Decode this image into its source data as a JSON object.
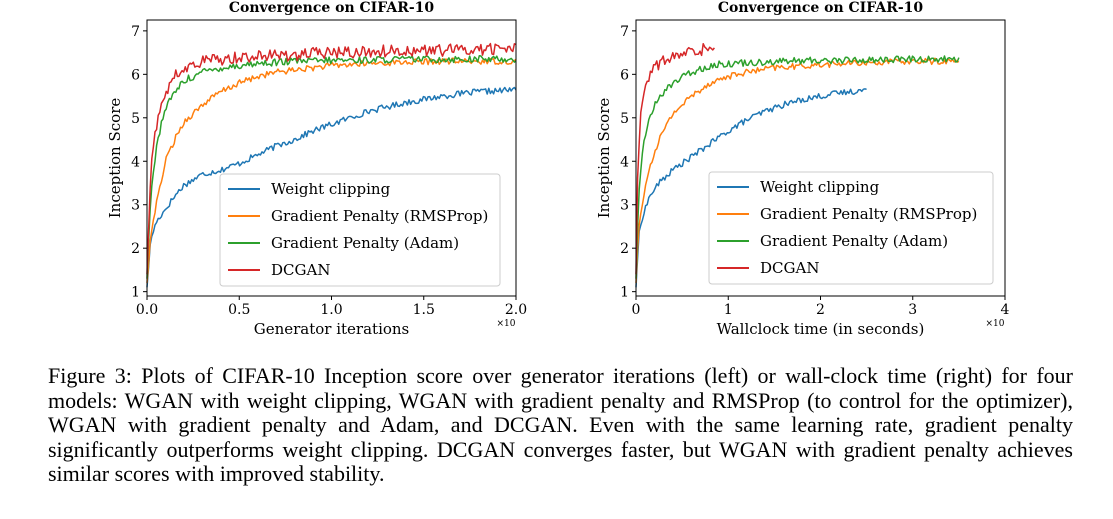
{
  "chart_data": [
    {
      "type": "line",
      "title": "Convergence on CIFAR-10",
      "xlabel": "Generator iterations",
      "ylabel": "Inception Score",
      "x_multiplier_label": "×10",
      "xlim": [
        0,
        2.0
      ],
      "ylim": [
        0.9,
        7.25
      ],
      "xticks": [
        "0.0",
        "0.5",
        "1.0",
        "1.5",
        "2.0"
      ],
      "xtick_values": [
        0,
        0.5,
        1.0,
        1.5,
        2.0
      ],
      "yticks": [
        "1",
        "2",
        "3",
        "4",
        "5",
        "6",
        "7"
      ],
      "yticks_values": [
        1,
        2,
        3,
        4,
        5,
        6,
        7
      ],
      "legend_position": "lower-right",
      "series": [
        {
          "name": "Weight clipping",
          "color": "#1f77b4",
          "x": [
            0,
            0.02,
            0.05,
            0.1,
            0.15,
            0.2,
            0.3,
            0.4,
            0.5,
            0.6,
            0.7,
            0.8,
            0.9,
            1.0,
            1.1,
            1.2,
            1.3,
            1.4,
            1.5,
            1.6,
            1.7,
            1.8,
            1.9,
            2.0
          ],
          "y": [
            1.1,
            2.2,
            2.6,
            2.9,
            3.2,
            3.45,
            3.7,
            3.8,
            3.95,
            4.15,
            4.35,
            4.5,
            4.7,
            4.85,
            5.0,
            5.15,
            5.25,
            5.35,
            5.42,
            5.5,
            5.55,
            5.6,
            5.62,
            5.65
          ]
        },
        {
          "name": "Gradient Penalty (RMSProp)",
          "color": "#ff7f0e",
          "x": [
            0,
            0.02,
            0.05,
            0.08,
            0.1,
            0.15,
            0.2,
            0.3,
            0.4,
            0.5,
            0.6,
            0.7,
            0.8,
            1.0,
            1.2,
            1.4,
            1.6,
            1.8,
            2.0
          ],
          "y": [
            1.2,
            2.3,
            3.0,
            3.6,
            4.0,
            4.5,
            4.9,
            5.3,
            5.6,
            5.8,
            5.95,
            6.05,
            6.1,
            6.2,
            6.25,
            6.28,
            6.3,
            6.3,
            6.3
          ]
        },
        {
          "name": "Gradient Penalty (Adam)",
          "color": "#2ca02c",
          "x": [
            0,
            0.02,
            0.05,
            0.08,
            0.1,
            0.15,
            0.2,
            0.3,
            0.4,
            0.5,
            0.6,
            0.8,
            1.0,
            1.2,
            1.4,
            1.6,
            1.8,
            2.0
          ],
          "y": [
            1.3,
            3.2,
            4.3,
            4.9,
            5.2,
            5.6,
            5.85,
            6.05,
            6.15,
            6.2,
            6.25,
            6.3,
            6.32,
            6.33,
            6.35,
            6.35,
            6.35,
            6.35
          ]
        },
        {
          "name": "DCGAN",
          "color": "#d62728",
          "x": [
            0,
            0.02,
            0.05,
            0.08,
            0.1,
            0.15,
            0.2,
            0.3,
            0.4,
            0.5,
            0.6,
            0.8,
            1.0,
            1.2,
            1.4,
            1.6,
            1.8,
            2.0
          ],
          "y": [
            1.4,
            3.8,
            4.8,
            5.3,
            5.6,
            5.95,
            6.1,
            6.3,
            6.35,
            6.4,
            6.42,
            6.45,
            6.5,
            6.52,
            6.55,
            6.55,
            6.58,
            6.6
          ]
        }
      ]
    },
    {
      "type": "line",
      "title": "Convergence on CIFAR-10",
      "xlabel": "Wallclock time (in seconds)",
      "ylabel": "Inception Score",
      "x_multiplier_label": "×10",
      "xlim": [
        0,
        4.0
      ],
      "ylim": [
        0.9,
        7.25
      ],
      "xticks": [
        "0",
        "1",
        "2",
        "3",
        "4"
      ],
      "xtick_values": [
        0,
        1,
        2,
        3,
        4
      ],
      "yticks": [
        "1",
        "2",
        "3",
        "4",
        "5",
        "6",
        "7"
      ],
      "yticks_values": [
        1,
        2,
        3,
        4,
        5,
        6,
        7
      ],
      "legend_position": "lower-right",
      "series": [
        {
          "name": "Weight clipping",
          "color": "#1f77b4",
          "x": [
            0,
            0.03,
            0.08,
            0.15,
            0.25,
            0.4,
            0.6,
            0.8,
            1.0,
            1.2,
            1.4,
            1.6,
            1.8,
            2.0,
            2.2,
            2.4,
            2.5
          ],
          "y": [
            1.1,
            2.3,
            2.8,
            3.2,
            3.5,
            3.8,
            4.1,
            4.4,
            4.7,
            4.95,
            5.15,
            5.3,
            5.42,
            5.5,
            5.57,
            5.62,
            5.65
          ]
        },
        {
          "name": "Gradient Penalty (RMSProp)",
          "color": "#ff7f0e",
          "x": [
            0,
            0.03,
            0.08,
            0.15,
            0.25,
            0.4,
            0.6,
            0.8,
            1.0,
            1.2,
            1.5,
            2.0,
            2.5,
            3.0,
            3.5
          ],
          "y": [
            1.2,
            2.5,
            3.2,
            3.9,
            4.5,
            5.1,
            5.5,
            5.8,
            5.95,
            6.05,
            6.15,
            6.22,
            6.27,
            6.3,
            6.3
          ]
        },
        {
          "name": "Gradient Penalty (Adam)",
          "color": "#2ca02c",
          "x": [
            0,
            0.03,
            0.08,
            0.15,
            0.25,
            0.4,
            0.6,
            0.8,
            1.0,
            1.5,
            2.0,
            2.5,
            3.0,
            3.5
          ],
          "y": [
            1.3,
            3.3,
            4.4,
            5.0,
            5.5,
            5.8,
            6.05,
            6.2,
            6.25,
            6.3,
            6.32,
            6.33,
            6.35,
            6.35
          ]
        },
        {
          "name": "DCGAN",
          "color": "#d62728",
          "x": [
            0,
            0.02,
            0.05,
            0.08,
            0.12,
            0.18,
            0.25,
            0.35,
            0.5,
            0.65,
            0.8,
            0.85
          ],
          "y": [
            1.4,
            4.0,
            5.0,
            5.5,
            5.9,
            6.1,
            6.25,
            6.35,
            6.45,
            6.55,
            6.6,
            6.65
          ]
        }
      ]
    }
  ],
  "caption": "Figure 3:  Plots of CIFAR-10 Inception score over generator iterations (left) or wall-clock time (right) for four models: WGAN with weight clipping, WGAN with gradient penalty and RMSProp (to control for the optimizer), WGAN with gradient penalty and Adam, and DCGAN. Even with the same learning rate, gradient penalty significantly outperforms weight clipping. DCGAN converges faster, but WGAN with gradient penalty achieves similar scores with improved stability."
}
